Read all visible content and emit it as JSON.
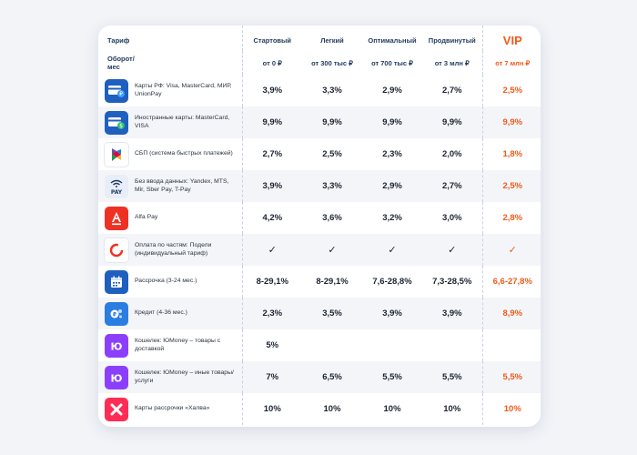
{
  "header": {
    "tariff_label": "Тариф",
    "turnover_label": "Оборот/ мес",
    "tariffs": [
      {
        "name": "Стартовый",
        "turnover": "от 0 ₽"
      },
      {
        "name": "Легкий",
        "turnover": "от 300 тыс ₽"
      },
      {
        "name": "Оптимальный",
        "turnover": "от 700 тыс ₽"
      },
      {
        "name": "Продвинутый",
        "turnover": "от 3 млн ₽"
      },
      {
        "name": "VIP",
        "turnover": "от 7 млн ₽"
      }
    ]
  },
  "rows": [
    {
      "icon": "card-ruble-icon",
      "color": "#1f5fbf",
      "label": "Карты РФ: Visa, MasterCard, МИР, UnionPay",
      "values": [
        "3,9%",
        "3,3%",
        "2,9%",
        "2,7%",
        "2,5%"
      ]
    },
    {
      "icon": "card-dollar-icon",
      "color": "#1f5fbf",
      "label": "Иностранные карты: MasterCard, VISA",
      "values": [
        "9,9%",
        "9,9%",
        "9,9%",
        "9,9%",
        "9,9%"
      ]
    },
    {
      "icon": "sbp-icon",
      "color": "#ffffff",
      "label": "СБП (система быстрых платежей)",
      "values": [
        "2,7%",
        "2,5%",
        "2,3%",
        "2,0%",
        "1,8%"
      ]
    },
    {
      "icon": "wifi-pay-icon",
      "color": "#e8eef8",
      "label": "Без ввода данных: Yandex, MTS, Mir, Sber Pay, T-Pay",
      "values": [
        "3,9%",
        "3,3%",
        "2,9%",
        "2,7%",
        "2,5%"
      ]
    },
    {
      "icon": "alfa-icon",
      "color": "#ef3124",
      "label": "Alfa Pay",
      "values": [
        "4,2%",
        "3,6%",
        "3,2%",
        "3,0%",
        "2,8%"
      ]
    },
    {
      "icon": "podeli-icon",
      "color": "#ffffff",
      "label": "Оплата по частям: Подели (индивидуальный тариф)",
      "values": [
        "✓",
        "✓",
        "✓",
        "✓",
        "✓"
      ]
    },
    {
      "icon": "calendar-icon",
      "color": "#1f5fbf",
      "label": "Рассрочка (3-24 мес.)",
      "values": [
        "8-29,1%",
        "8-29,1%",
        "7,6-28,8%",
        "7,3-28,5%",
        "6,6-27,8%"
      ]
    },
    {
      "icon": "credit-icon",
      "color": "#2a7de1",
      "label": "Кредит (4-36 мес.)",
      "values": [
        "2,3%",
        "3,5%",
        "3,9%",
        "3,9%",
        "8,9%"
      ]
    },
    {
      "icon": "yumoney-icon",
      "color": "#8b3ffd",
      "label": "Кошелек: ЮMoney – товары с доставкой",
      "values": [
        "5%",
        "",
        "",
        "",
        ""
      ]
    },
    {
      "icon": "yumoney-icon",
      "color": "#8b3ffd",
      "label": "Кошелек: ЮMoney – иные товары/услуги",
      "values": [
        "7%",
        "6,5%",
        "5,5%",
        "5,5%",
        "5,5%"
      ]
    },
    {
      "icon": "halva-icon",
      "color": "#ff2d55",
      "label": "Карты рассрочки «Халва»",
      "values": [
        "10%",
        "10%",
        "10%",
        "10%",
        "10%"
      ]
    }
  ]
}
